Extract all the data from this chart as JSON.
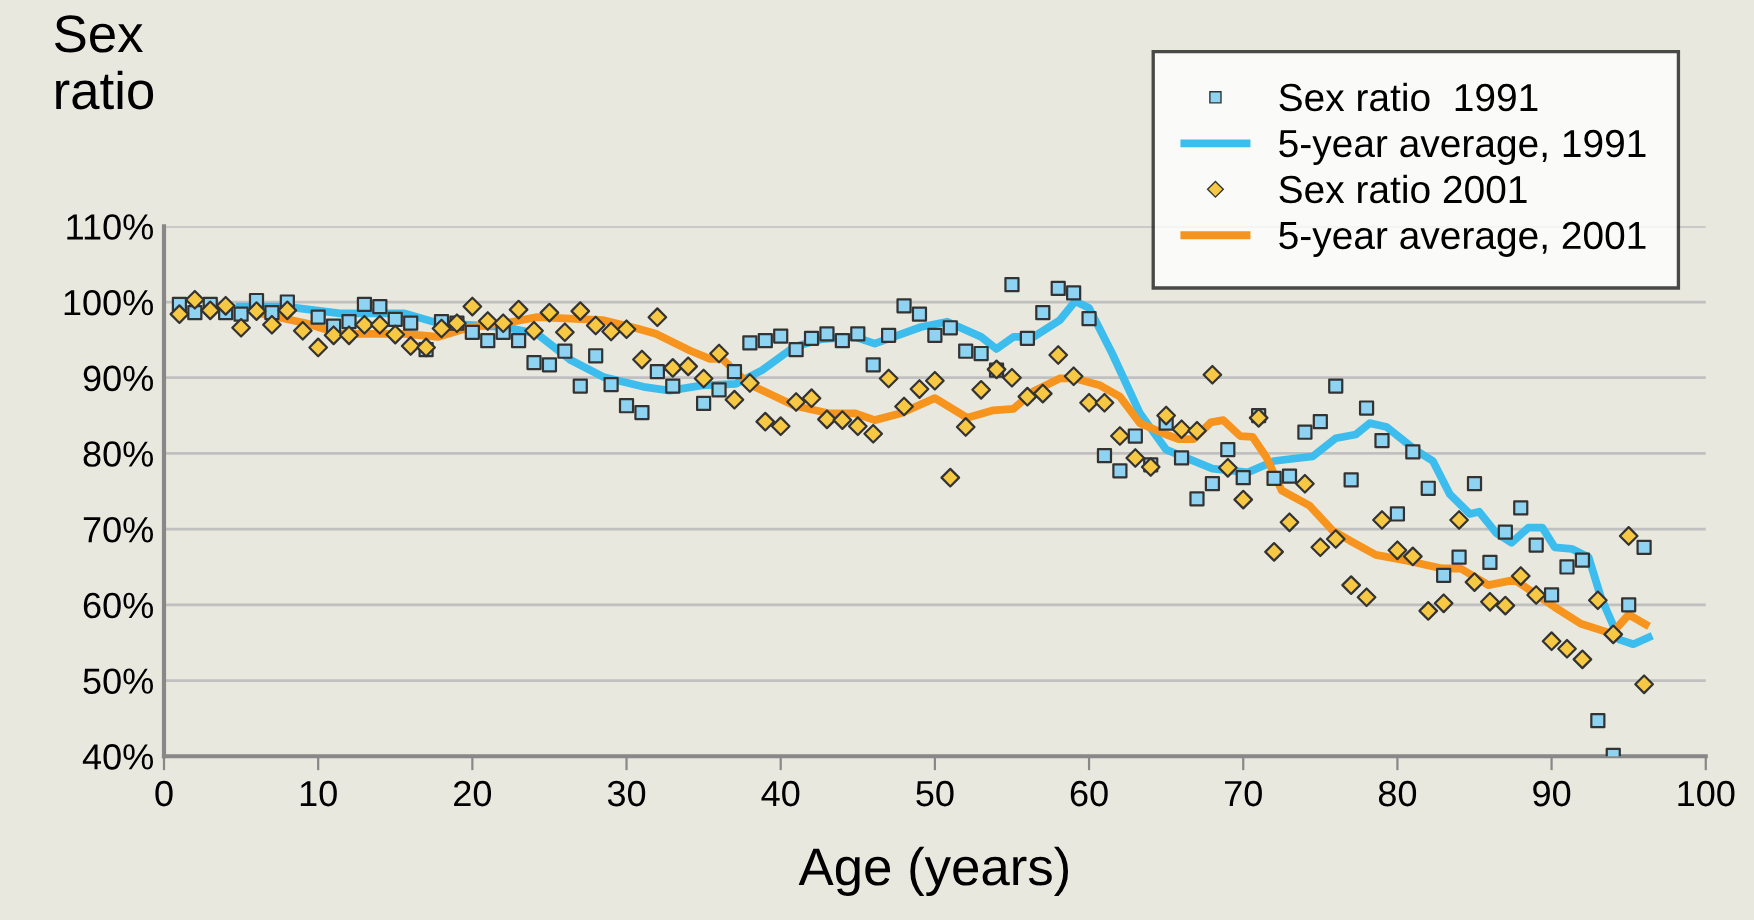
{
  "chart_data": {
    "type": "scatter",
    "xlabel": "Age (years)",
    "ylabel": "Sex\nratio",
    "xlim": [
      0,
      100
    ],
    "xticks": [
      0,
      10,
      20,
      30,
      40,
      50,
      60,
      70,
      80,
      90,
      100
    ],
    "ylim": [
      40,
      110
    ],
    "yticks": [
      {
        "value": 40,
        "label": "40%"
      },
      {
        "value": 50,
        "label": "50%"
      },
      {
        "value": 60,
        "label": "60%"
      },
      {
        "value": 70,
        "label": "70%"
      },
      {
        "value": 80,
        "label": "80%"
      },
      {
        "value": 90,
        "label": "90%"
      },
      {
        "value": 100,
        "label": "100%"
      },
      {
        "value": 110,
        "label": "110%"
      }
    ],
    "grid": "y",
    "legend": "top right",
    "series": [
      {
        "name": "Sex ratio  1991",
        "marker": "square",
        "color": "#8fd3f2",
        "x": [
          1,
          2,
          3,
          4,
          5,
          6,
          7,
          8,
          10,
          11,
          12,
          13,
          14,
          15,
          16,
          17,
          18,
          19,
          20,
          21,
          22,
          23,
          24,
          25,
          26,
          27,
          28,
          29,
          30,
          31,
          32,
          33,
          35,
          36,
          37,
          38,
          39,
          40,
          41,
          42,
          43,
          44,
          45,
          46,
          47,
          48,
          49,
          50,
          51,
          52,
          53,
          54,
          55,
          56,
          57,
          58,
          59,
          60,
          61,
          62,
          63,
          64,
          65,
          66,
          67,
          68,
          69,
          70,
          71,
          72,
          73,
          74,
          75,
          76,
          77,
          78,
          79,
          80,
          81,
          82,
          83,
          84,
          85,
          86,
          87,
          88,
          89,
          90,
          91,
          92,
          93,
          94,
          95,
          96
        ],
        "values": [
          99.7,
          98.6,
          99.7,
          98.6,
          98.4,
          100.2,
          98.6,
          100,
          98,
          96.8,
          97.4,
          99.7,
          99.4,
          97.7,
          97.2,
          93.7,
          97.4,
          97.2,
          96,
          94.9,
          96,
          94.9,
          92,
          91.7,
          93.5,
          88.9,
          92.9,
          89.1,
          86.3,
          85.4,
          90.8,
          88.9,
          86.6,
          88.4,
          90.8,
          94.6,
          94.9,
          95.5,
          93.7,
          95.2,
          95.8,
          94.9,
          95.8,
          91.7,
          95.6,
          99.5,
          98.4,
          95.6,
          96.6,
          93.5,
          93.2,
          91,
          102.3,
          95.2,
          98.6,
          101.8,
          101.2,
          97.8,
          79.7,
          77.7,
          82.3,
          78.5,
          84,
          79.4,
          74,
          76,
          80.5,
          76.8,
          85,
          76.7,
          77,
          82.8,
          84.2,
          88.9,
          76.5,
          86,
          81.7,
          72,
          80.2,
          75.4,
          63.9,
          66.3,
          76,
          65.6,
          69.6,
          72.8,
          67.9,
          61.3,
          65,
          65.9,
          44.7,
          40.1,
          60,
          67.6
        ]
      },
      {
        "name": "5-year average, 1991",
        "type": "line",
        "color": "#3dbdee",
        "x": [
          4.9,
          7.9,
          11.4,
          15.6,
          17.8,
          22.1,
          24.2,
          26.4,
          28.5,
          31.1,
          32.8,
          34.9,
          37.1,
          38.8,
          40.9,
          42.7,
          44.8,
          46.1,
          49.1,
          50.8,
          53,
          54,
          55.1,
          56.4,
          58.1,
          59.1,
          60,
          61.5,
          63.3,
          65,
          68,
          70.3,
          72,
          74.5,
          76,
          77.3,
          78.2,
          79.3,
          81.2,
          82.3,
          83.4,
          84.7,
          85.3,
          86.4,
          87.4,
          88.5,
          89.4,
          90.2,
          91.3,
          92.4,
          93.2,
          94.4,
          95.3,
          96.3
        ],
        "values": [
          99.4,
          99.4,
          98.5,
          98.5,
          97.2,
          96.7,
          95.8,
          92.3,
          90.1,
          88.8,
          88.3,
          89,
          89.2,
          91,
          94.1,
          95.1,
          95.4,
          94.5,
          96.7,
          97.4,
          95.4,
          93.8,
          95.4,
          95.4,
          97.6,
          100.1,
          99.2,
          93.2,
          85.3,
          80.5,
          78,
          77.5,
          79,
          79.6,
          82,
          82.5,
          84,
          83.5,
          80.4,
          79,
          74.6,
          72,
          72.3,
          69.5,
          68.2,
          70.2,
          70.2,
          67.6,
          67.4,
          66.3,
          61,
          55.4,
          54.8,
          55.7
        ]
      },
      {
        "name": "Sex ratio 2001",
        "marker": "diamond",
        "color": "#f7c843",
        "x": [
          1,
          2,
          3,
          4,
          5,
          6,
          7,
          8,
          9,
          10,
          11,
          12,
          13,
          14,
          15,
          16,
          17,
          18,
          19,
          20,
          21,
          22,
          23,
          24,
          25,
          26,
          27,
          28,
          29,
          30,
          31,
          32,
          33,
          34,
          35,
          36,
          37,
          38,
          39,
          40,
          41,
          42,
          43,
          44,
          45,
          46,
          47,
          48,
          49,
          50,
          51,
          52,
          53,
          54,
          55,
          56,
          57,
          58,
          59,
          60,
          61,
          62,
          63,
          64,
          65,
          66,
          67,
          68,
          69,
          70,
          71,
          72,
          73,
          74,
          75,
          76,
          77,
          78,
          79,
          80,
          81,
          82,
          83,
          84,
          85,
          86,
          87,
          88,
          89,
          90,
          91,
          92,
          93,
          94,
          95,
          96
        ],
        "values": [
          98.4,
          100.3,
          98.9,
          99.5,
          96.6,
          98.8,
          97,
          98.9,
          96.2,
          94,
          95.6,
          95.6,
          97,
          97,
          95.7,
          94.2,
          94,
          96.5,
          97.2,
          99.4,
          97.5,
          97.2,
          99,
          96.2,
          98.6,
          96,
          98.8,
          96.9,
          96.1,
          96.4,
          92.4,
          98,
          91.3,
          91.5,
          89.9,
          93.2,
          87.1,
          89.3,
          84.2,
          83.6,
          86.8,
          87.3,
          84.5,
          84.4,
          83.6,
          82.6,
          89.9,
          86.2,
          88.5,
          89.6,
          76.8,
          83.5,
          88.4,
          91.1,
          90,
          87.5,
          87.9,
          93,
          90.2,
          86.7,
          86.7,
          82.3,
          79.4,
          78.2,
          85,
          83.2,
          83,
          90.4,
          78.1,
          73.9,
          84.7,
          67,
          70.9,
          76,
          67.6,
          68.7,
          62.6,
          61,
          71.2,
          67.2,
          66.4,
          59.2,
          60.2,
          71.2,
          63,
          60.4,
          59.9,
          63.8,
          61.3,
          55.2,
          54.2,
          52.8,
          60.6,
          56.1,
          69.1,
          49.5
        ]
      },
      {
        "name": "5-year average, 2001",
        "type": "line",
        "color": "#f7941d",
        "x": [
          6.2,
          9.2,
          11.4,
          15.6,
          17.8,
          19.9,
          22.1,
          24.2,
          28.5,
          30.7,
          31.9,
          34.1,
          35.4,
          36.2,
          37.9,
          40.9,
          43.1,
          44.8,
          46.1,
          47.8,
          50,
          52.1,
          53.8,
          55.1,
          56.4,
          58.1,
          59.1,
          60.7,
          62,
          63.3,
          65,
          65.8,
          66.8,
          67.9,
          68.7,
          69.8,
          70.6,
          71.5,
          72.5,
          74.3,
          75.8,
          76.9,
          78.6,
          80.7,
          82.9,
          84.1,
          85.9,
          87.6,
          88.9,
          90.2,
          91.9,
          93.9,
          95,
          96.1
        ],
        "values": [
          98.5,
          97.2,
          95.8,
          95.8,
          95.4,
          96.7,
          97.2,
          98,
          97.6,
          96.5,
          95.8,
          93.6,
          92.5,
          92.5,
          89.2,
          86.3,
          85.3,
          85.3,
          84.4,
          85.3,
          87.3,
          84.7,
          85.7,
          85.9,
          88.2,
          89.9,
          89.9,
          89,
          87.5,
          84,
          82.5,
          81.9,
          81.9,
          84.1,
          84.4,
          82.3,
          82.2,
          79.5,
          75.1,
          73.1,
          69.8,
          68.5,
          66.6,
          65.8,
          64.8,
          64.8,
          62.6,
          63.3,
          61.5,
          59.7,
          57.5,
          56.2,
          58.7,
          57.4
        ]
      }
    ]
  }
}
